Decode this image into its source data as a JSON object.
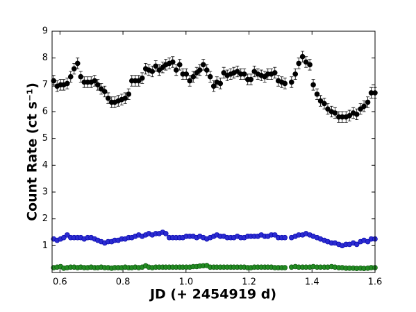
{
  "chart_data": {
    "type": "scatter",
    "xlabel": "JD (+ 2454919 d)",
    "ylabel": "Count Rate (ct s⁻¹)",
    "xlim": [
      0.575,
      1.6
    ],
    "ylim": [
      0,
      9
    ],
    "xticks": [
      0.6,
      0.8,
      {
        "value": 1,
        "label": "1.0"
      },
      1.2,
      1.4,
      1.6
    ],
    "yticks": [
      1,
      2,
      3,
      4,
      5,
      6,
      7,
      8,
      9
    ],
    "x": [
      0.58,
      0.591,
      0.602,
      0.612,
      0.623,
      0.634,
      0.645,
      0.656,
      0.666,
      0.677,
      0.688,
      0.699,
      0.71,
      0.72,
      0.731,
      0.742,
      0.753,
      0.764,
      0.774,
      0.785,
      0.796,
      0.807,
      0.818,
      0.828,
      0.839,
      0.85,
      0.861,
      0.872,
      0.882,
      0.893,
      0.904,
      0.915,
      0.926,
      0.936,
      0.947,
      0.958,
      0.969,
      0.98,
      0.99,
      1.001,
      1.012,
      1.023,
      1.034,
      1.044,
      1.055,
      1.066,
      1.077,
      1.088,
      1.098,
      1.109,
      1.12,
      1.131,
      1.142,
      1.152,
      1.163,
      1.174,
      1.185,
      1.196,
      1.206,
      1.217,
      1.228,
      1.239,
      1.25,
      1.26,
      1.271,
      1.282,
      1.293,
      1.304,
      1.314,
      1.335,
      1.347,
      1.358,
      1.37,
      1.381,
      1.393,
      1.404,
      1.416,
      1.427,
      1.439,
      1.45,
      1.462,
      1.473,
      1.485,
      1.496,
      1.508,
      1.519,
      1.531,
      1.542,
      1.554,
      1.565,
      1.577,
      1.588,
      1.6
    ],
    "series": [
      {
        "color": "#000000",
        "edge": "#000000",
        "error": 0.2,
        "values": [
          7.15,
          6.95,
          7.0,
          7.0,
          7.05,
          7.3,
          7.6,
          7.8,
          7.3,
          7.1,
          7.1,
          7.1,
          7.15,
          7.0,
          6.85,
          6.75,
          6.5,
          6.35,
          6.35,
          6.4,
          6.45,
          6.5,
          6.65,
          7.15,
          7.15,
          7.15,
          7.25,
          7.6,
          7.55,
          7.5,
          7.7,
          7.55,
          7.65,
          7.75,
          7.8,
          7.85,
          7.55,
          7.75,
          7.4,
          7.4,
          7.15,
          7.3,
          7.45,
          7.55,
          7.75,
          7.55,
          7.3,
          6.95,
          7.1,
          7.05,
          7.45,
          7.35,
          7.4,
          7.45,
          7.5,
          7.4,
          7.4,
          7.2,
          7.2,
          7.5,
          7.4,
          7.35,
          7.3,
          7.4,
          7.4,
          7.45,
          7.15,
          7.1,
          7.05,
          7.1,
          7.4,
          7.8,
          8.05,
          7.85,
          7.75,
          7.0,
          6.65,
          6.4,
          6.3,
          6.1,
          6.0,
          5.95,
          5.8,
          5.8,
          5.8,
          5.85,
          5.95,
          5.9,
          6.1,
          6.2,
          6.35,
          6.7,
          6.7
        ]
      },
      {
        "color": "#2b2bd0",
        "edge": "#0000aa",
        "error": 0.07,
        "values": [
          1.25,
          1.2,
          1.25,
          1.3,
          1.4,
          1.3,
          1.3,
          1.3,
          1.3,
          1.25,
          1.3,
          1.3,
          1.25,
          1.2,
          1.15,
          1.1,
          1.15,
          1.15,
          1.2,
          1.2,
          1.25,
          1.25,
          1.3,
          1.3,
          1.35,
          1.4,
          1.35,
          1.4,
          1.45,
          1.4,
          1.45,
          1.45,
          1.5,
          1.45,
          1.3,
          1.3,
          1.3,
          1.3,
          1.3,
          1.35,
          1.35,
          1.35,
          1.3,
          1.35,
          1.3,
          1.25,
          1.3,
          1.35,
          1.4,
          1.35,
          1.35,
          1.3,
          1.3,
          1.3,
          1.35,
          1.3,
          1.3,
          1.35,
          1.35,
          1.35,
          1.35,
          1.4,
          1.35,
          1.35,
          1.4,
          1.4,
          1.3,
          1.3,
          1.3,
          1.3,
          1.35,
          1.4,
          1.4,
          1.45,
          1.4,
          1.35,
          1.3,
          1.25,
          1.2,
          1.15,
          1.1,
          1.1,
          1.05,
          1.0,
          1.05,
          1.05,
          1.1,
          1.05,
          1.15,
          1.2,
          1.15,
          1.25,
          1.25
        ]
      },
      {
        "color": "#228b22",
        "edge": "#0a4a0a",
        "error": 0.04,
        "values": [
          0.18,
          0.2,
          0.22,
          0.16,
          0.18,
          0.2,
          0.2,
          0.18,
          0.2,
          0.18,
          0.18,
          0.2,
          0.18,
          0.18,
          0.2,
          0.18,
          0.18,
          0.16,
          0.18,
          0.18,
          0.18,
          0.2,
          0.18,
          0.18,
          0.2,
          0.18,
          0.2,
          0.25,
          0.2,
          0.18,
          0.2,
          0.2,
          0.2,
          0.2,
          0.2,
          0.2,
          0.2,
          0.2,
          0.2,
          0.2,
          0.2,
          0.22,
          0.22,
          0.24,
          0.25,
          0.26,
          0.2,
          0.2,
          0.2,
          0.2,
          0.2,
          0.2,
          0.2,
          0.2,
          0.2,
          0.2,
          0.2,
          0.18,
          0.18,
          0.2,
          0.2,
          0.2,
          0.2,
          0.2,
          0.2,
          0.18,
          0.18,
          0.18,
          0.18,
          0.2,
          0.22,
          0.2,
          0.2,
          0.2,
          0.2,
          0.22,
          0.2,
          0.2,
          0.2,
          0.2,
          0.22,
          0.2,
          0.18,
          0.18,
          0.16,
          0.16,
          0.16,
          0.15,
          0.16,
          0.15,
          0.16,
          0.18,
          0.18
        ]
      }
    ]
  }
}
